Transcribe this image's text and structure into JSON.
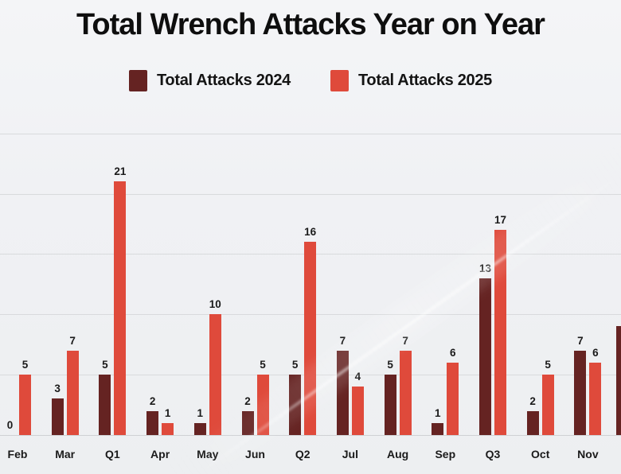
{
  "page": {
    "background_color": "#f0f1f3",
    "text_color": "#141414",
    "gridline_color": "#d8dadc"
  },
  "chart_data": {
    "type": "bar",
    "title": "Total Wrench Attacks Year on Year",
    "categories": [
      "Feb",
      "Mar",
      "Q1",
      "Apr",
      "May",
      "Jun",
      "Q2",
      "Jul",
      "Aug",
      "Sep",
      "Q3",
      "Oct",
      "Nov"
    ],
    "series": [
      {
        "name": "Total Attacks 2024",
        "color": "#652322",
        "values": [
          0,
          3,
          5,
          2,
          1,
          2,
          5,
          7,
          5,
          1,
          13,
          2,
          7
        ]
      },
      {
        "name": "Total Attacks 2025",
        "color": "#df4a3b",
        "values": [
          5,
          7,
          21,
          1,
          10,
          5,
          16,
          4,
          7,
          6,
          17,
          5,
          6
        ]
      }
    ],
    "value_labels_shown": true,
    "y_axis_labels_shown": false,
    "gridline_values": [
      5,
      10,
      15,
      20,
      25
    ],
    "ylim": [
      0,
      26
    ],
    "grid": true,
    "legend_position": "top-center",
    "clipped_partial_bar": {
      "series": "Total Attacks 2024",
      "approx_value": 9,
      "position": "right-edge"
    }
  }
}
